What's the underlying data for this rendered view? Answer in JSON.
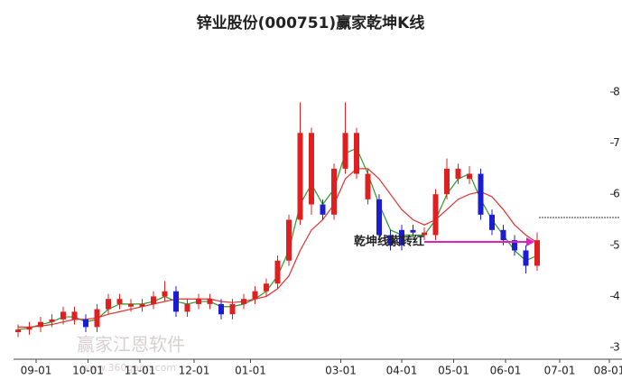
{
  "chart_data": {
    "type": "candlestick",
    "title": "锌业股份(000751)赢家乾坤K线",
    "annotation": "乾坤线紫转红",
    "watermark": [
      "赢家江恩软件",
      "www.360gann.com"
    ],
    "xlim": [
      0,
      264
    ],
    "xticks": [
      {
        "value": 10,
        "label": "09-01"
      },
      {
        "value": 33,
        "label": "10-01"
      },
      {
        "value": 56,
        "label": "11-01"
      },
      {
        "value": 80,
        "label": "12-01"
      },
      {
        "value": 105,
        "label": "01-01"
      },
      {
        "value": 145,
        "label": "03-01"
      },
      {
        "value": 172,
        "label": "04-01"
      },
      {
        "value": 195,
        "label": "05-01"
      },
      {
        "value": 218,
        "label": "06-01"
      },
      {
        "value": 242,
        "label": "07-01"
      },
      {
        "value": 264,
        "label": "08-01"
      }
    ],
    "ylim": [
      3,
      8
    ],
    "yticks": [
      3,
      4,
      5,
      6,
      7,
      8
    ],
    "x": [
      2,
      7,
      12,
      17,
      22,
      27,
      32,
      37,
      42,
      47,
      52,
      57,
      62,
      67,
      72,
      77,
      82,
      87,
      92,
      97,
      102,
      107,
      112,
      117,
      122,
      127,
      132,
      137,
      142,
      147,
      152,
      157,
      162,
      167,
      172,
      177,
      182,
      187,
      192,
      197,
      202,
      207,
      212,
      217,
      222,
      227,
      232
    ],
    "open": [
      3.3,
      3.35,
      3.4,
      3.5,
      3.55,
      3.7,
      3.55,
      3.4,
      3.75,
      3.95,
      3.85,
      3.8,
      3.85,
      4.0,
      4.1,
      3.7,
      3.85,
      3.95,
      3.85,
      3.65,
      3.85,
      3.95,
      4.1,
      4.25,
      4.7,
      5.5,
      7.2,
      5.8,
      5.6,
      6.5,
      7.2,
      6.4,
      5.9,
      5.2,
      5.0,
      5.3,
      5.25,
      5.2,
      6.0,
      6.5,
      6.3,
      6.4,
      5.6,
      5.3,
      5.1,
      4.9,
      4.6
    ],
    "high": [
      3.45,
      3.5,
      3.6,
      3.65,
      3.8,
      3.8,
      3.65,
      3.85,
      4.05,
      4.05,
      3.95,
      3.95,
      4.1,
      4.3,
      4.2,
      3.95,
      4.05,
      4.05,
      3.95,
      3.95,
      4.05,
      4.2,
      4.35,
      4.8,
      5.6,
      7.8,
      7.3,
      5.9,
      6.6,
      7.8,
      7.3,
      6.5,
      6.0,
      5.3,
      5.4,
      5.4,
      5.35,
      6.1,
      6.7,
      6.6,
      6.55,
      6.5,
      5.7,
      5.4,
      5.2,
      5.0,
      5.25
    ],
    "low": [
      3.2,
      3.25,
      3.3,
      3.4,
      3.45,
      3.45,
      3.3,
      3.3,
      3.65,
      3.75,
      3.7,
      3.7,
      3.75,
      3.9,
      3.6,
      3.6,
      3.75,
      3.75,
      3.55,
      3.55,
      3.75,
      3.85,
      4.0,
      4.15,
      4.6,
      5.4,
      5.6,
      5.5,
      5.5,
      6.4,
      6.3,
      5.8,
      5.1,
      4.9,
      4.9,
      5.15,
      5.1,
      5.1,
      5.9,
      6.2,
      6.2,
      5.5,
      5.2,
      5.0,
      4.8,
      4.45,
      4.5
    ],
    "close": [
      3.35,
      3.4,
      3.5,
      3.55,
      3.7,
      3.55,
      3.4,
      3.75,
      3.95,
      3.85,
      3.8,
      3.85,
      4.0,
      4.1,
      3.7,
      3.85,
      3.95,
      3.85,
      3.65,
      3.85,
      3.95,
      4.1,
      4.25,
      4.7,
      5.5,
      7.2,
      5.8,
      5.6,
      6.5,
      7.2,
      6.4,
      5.9,
      5.2,
      5.0,
      5.3,
      5.25,
      5.2,
      6.0,
      6.5,
      6.3,
      6.4,
      5.6,
      5.3,
      5.1,
      4.9,
      4.6,
      5.1
    ],
    "colors": [
      "#e02020",
      "#e02020",
      "#e02020",
      "#e02020",
      "#e02020",
      "#e02020",
      "#1c1cd0",
      "#e02020",
      "#e02020",
      "#e02020",
      "#e02020",
      "#e02020",
      "#e02020",
      "#e02020",
      "#1c1cd0",
      "#e02020",
      "#e02020",
      "#e02020",
      "#1c1cd0",
      "#e02020",
      "#e02020",
      "#e02020",
      "#e02020",
      "#e02020",
      "#e02020",
      "#e02020",
      "#e02020",
      "#1c1cd0",
      "#e02020",
      "#e02020",
      "#e02020",
      "#e02020",
      "#1c1cd0",
      "#1c1cd0",
      "#1c1cd0",
      "#1c1cd0",
      "#e02020",
      "#e02020",
      "#e02020",
      "#e02020",
      "#e02020",
      "#1c1cd0",
      "#1c1cd0",
      "#1c1cd0",
      "#1c1cd0",
      "#1c1cd0",
      "#e02020"
    ],
    "lines": [
      {
        "color": "#2a9a2a",
        "values": [
          3.35,
          3.38,
          3.45,
          3.5,
          3.6,
          3.6,
          3.5,
          3.55,
          3.75,
          3.85,
          3.85,
          3.85,
          3.9,
          4.0,
          3.9,
          3.85,
          3.9,
          3.9,
          3.8,
          3.8,
          3.85,
          3.95,
          4.1,
          4.4,
          4.9,
          5.8,
          6.2,
          5.8,
          6.1,
          6.8,
          6.9,
          6.4,
          5.8,
          5.3,
          5.2,
          5.2,
          5.2,
          5.5,
          6.0,
          6.3,
          6.4,
          5.9,
          5.5,
          5.2,
          4.9,
          4.7,
          4.8
        ]
      },
      {
        "color": "#e03030",
        "values": [
          3.4,
          3.4,
          3.42,
          3.45,
          3.5,
          3.55,
          3.55,
          3.58,
          3.65,
          3.7,
          3.75,
          3.8,
          3.85,
          3.9,
          3.95,
          3.95,
          3.95,
          3.95,
          3.9,
          3.88,
          3.9,
          3.95,
          4.0,
          4.15,
          4.4,
          4.9,
          5.3,
          5.5,
          5.8,
          6.3,
          6.5,
          6.5,
          6.3,
          6.0,
          5.7,
          5.5,
          5.4,
          5.5,
          5.7,
          5.9,
          6.0,
          6.05,
          5.95,
          5.7,
          5.4,
          5.2,
          5.05
        ]
      }
    ]
  }
}
